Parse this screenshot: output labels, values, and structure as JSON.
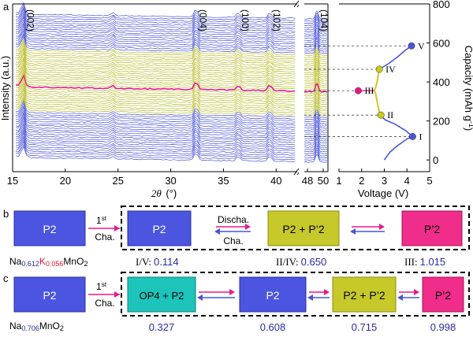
{
  "panel_a": {
    "label": "a",
    "chart_left": {
      "type": "line",
      "xlabel_italic": "2θ",
      "xlabel_unit": "(°)",
      "ylabel": "Intensity (a.u.)",
      "x_ticks_main": [
        "15",
        "20",
        "25",
        "30",
        "35",
        "40"
      ],
      "x_ticks_zoom": [
        "48",
        "50"
      ],
      "xlim_main": [
        15,
        42
      ],
      "xlim_zoom": [
        47.6,
        50.6
      ],
      "peaks": [
        {
          "label": "(002)",
          "x": 16.0
        },
        {
          "label": "(004)",
          "x": 32.4
        },
        {
          "label": "(100)",
          "x": 36.4
        },
        {
          "label": "(102)",
          "x": 39.4
        },
        {
          "label": "(104)",
          "x": 49.2
        }
      ],
      "extra_peak_x": 24.5,
      "curve_bands": [
        {
          "name": "blue",
          "count": 17,
          "color": "#4a55d6"
        },
        {
          "name": "olive",
          "count": 17,
          "color": "#b9bd2a"
        },
        {
          "name": "magenta",
          "count": 1,
          "color": "#e8198b"
        },
        {
          "name": "olive",
          "count": 11,
          "color": "#b9bd2a"
        },
        {
          "name": "blue",
          "count": 22,
          "color": "#4a55d6"
        }
      ]
    },
    "chart_right": {
      "type": "line",
      "xlabel": "Voltage (V)",
      "ylabel": "Capacity (mAh g",
      "ylabel_sup": "-1",
      "ylabel_end": ")",
      "x_ticks": [
        "1",
        "2",
        "3",
        "4",
        "5"
      ],
      "y_ticks": [
        "0",
        "200",
        "400",
        "600",
        "800"
      ],
      "xlim": [
        1,
        5
      ],
      "ylim": [
        -60,
        800
      ],
      "charge_curve": [
        [
          3.0,
          0
        ],
        [
          3.25,
          40
        ],
        [
          3.6,
          75
        ],
        [
          4.0,
          108
        ],
        [
          4.25,
          120
        ],
        [
          3.95,
          150
        ],
        [
          3.45,
          185
        ],
        [
          3.05,
          205
        ],
        [
          2.85,
          225
        ]
      ],
      "plateau_1": [
        [
          2.85,
          225
        ],
        [
          2.75,
          260
        ],
        [
          2.68,
          300
        ],
        [
          2.62,
          340
        ],
        [
          2.55,
          355
        ],
        [
          2.62,
          372
        ],
        [
          2.7,
          410
        ],
        [
          2.75,
          450
        ],
        [
          2.78,
          465
        ]
      ],
      "charge_curve_2": [
        [
          2.78,
          465
        ],
        [
          3.2,
          495
        ],
        [
          3.6,
          530
        ],
        [
          3.9,
          560
        ],
        [
          4.2,
          585
        ]
      ],
      "markers": [
        {
          "label": "I",
          "x": 4.25,
          "y": 120,
          "color": "#4a55d6"
        },
        {
          "label": "II",
          "x": 2.85,
          "y": 230,
          "color": "#c8cc1e"
        },
        {
          "label": "III",
          "x": 1.85,
          "y": 355,
          "color": "#e8198b"
        },
        {
          "label": "IV",
          "x": 2.78,
          "y": 465,
          "color": "#c8cc1e"
        },
        {
          "label": "V",
          "x": 4.2,
          "y": 585,
          "color": "#4a55d6"
        }
      ],
      "dashed_levels": [
        120,
        230,
        355,
        465,
        585
      ]
    }
  },
  "panel_b": {
    "label": "b",
    "start_box": "P2",
    "arrow_sup": "st",
    "arrow_num": "1",
    "arrow_label": "Cha.",
    "box1": "P2",
    "discha_label": "Discha.",
    "cha_label": "Cha.",
    "box2": "P2 + P’2",
    "box3": "P’2",
    "formula": {
      "na": "Na",
      "na_sub": "0.612",
      "k": "K",
      "k_sub": "0.056",
      "rest": "MnO",
      "rest_sub": "2"
    },
    "value_labels": [
      {
        "roman": "I/V:",
        "value": "0.114"
      },
      {
        "roman": "II/IV:",
        "value": "0.650"
      },
      {
        "roman": "III:",
        "value": "1.015"
      }
    ]
  },
  "panel_c": {
    "label": "c",
    "start_box": "P2",
    "arrow_sup": "st",
    "arrow_num": "1",
    "arrow_label": "Cha.",
    "boxes": [
      "OP4 + P2",
      "P2",
      "P2 + P’2",
      "P’2"
    ],
    "formula": {
      "na": "Na",
      "na_sub": "0.706",
      "rest": "MnO",
      "rest_sub": "2"
    },
    "values": [
      "0.327",
      "0.608",
      "0.715",
      "0.998"
    ]
  },
  "colors": {
    "blue_box": "#4b55e0",
    "olive_box": "#c7c92a",
    "magenta_box": "#f02d8a",
    "teal_box": "#1cc4ba",
    "value_blue": "#2a2aa8",
    "k_red": "#e8192c"
  }
}
